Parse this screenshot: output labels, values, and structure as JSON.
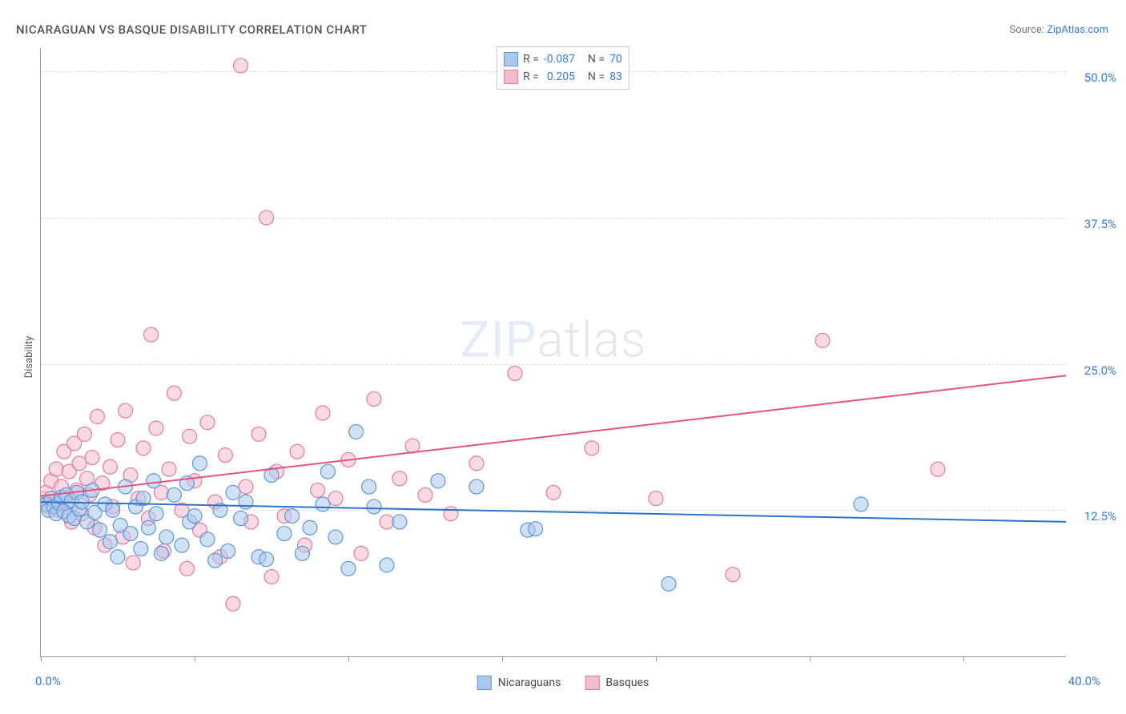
{
  "title": "NICARAGUAN VS BASQUE DISABILITY CORRELATION CHART",
  "source_prefix": "Source: ",
  "source_link": "ZipAtlas.com",
  "y_axis_label": "Disability",
  "watermark_a": "ZIP",
  "watermark_b": "atlas",
  "chart": {
    "type": "scatter",
    "xlim": [
      0,
      40
    ],
    "ylim": [
      0,
      52
    ],
    "y_ticks": [
      12.5,
      25.0,
      37.5,
      50.0
    ],
    "y_tick_labels": [
      "12.5%",
      "25.0%",
      "37.5%",
      "50.0%"
    ],
    "x_tick_positions": [
      0,
      6,
      12,
      18,
      24,
      30,
      36
    ],
    "x_end_labels": [
      "0.0%",
      "40.0%"
    ],
    "grid_color": "#dcdcdc",
    "axis_color": "#999999",
    "background_color": "#ffffff",
    "point_radius": 9,
    "point_opacity": 0.55,
    "trend_line_width": 2,
    "series": [
      {
        "name": "Nicaraguans",
        "fill": "#a9c8ec",
        "stroke": "#5c97d8",
        "line_color": "#2b74c9",
        "R": "-0.087",
        "N": "70",
        "trend": {
          "y_at_x0": 13.2,
          "y_at_x40": 11.5
        },
        "points": [
          [
            0.2,
            13.0
          ],
          [
            0.3,
            12.5
          ],
          [
            0.4,
            13.5
          ],
          [
            0.5,
            12.8
          ],
          [
            0.6,
            12.2
          ],
          [
            0.7,
            13.1
          ],
          [
            0.8,
            13.6
          ],
          [
            0.9,
            12.4
          ],
          [
            1.0,
            13.8
          ],
          [
            1.1,
            12.0
          ],
          [
            1.2,
            13.3
          ],
          [
            1.3,
            11.8
          ],
          [
            1.4,
            14.0
          ],
          [
            1.5,
            12.6
          ],
          [
            1.6,
            13.2
          ],
          [
            1.8,
            11.5
          ],
          [
            2.0,
            14.2
          ],
          [
            2.1,
            12.3
          ],
          [
            2.3,
            10.8
          ],
          [
            2.5,
            13.0
          ],
          [
            2.7,
            9.8
          ],
          [
            2.8,
            12.5
          ],
          [
            3.0,
            8.5
          ],
          [
            3.1,
            11.2
          ],
          [
            3.3,
            14.5
          ],
          [
            3.5,
            10.5
          ],
          [
            3.7,
            12.8
          ],
          [
            3.9,
            9.2
          ],
          [
            4.0,
            13.5
          ],
          [
            4.2,
            11.0
          ],
          [
            4.4,
            15.0
          ],
          [
            4.5,
            12.2
          ],
          [
            4.7,
            8.8
          ],
          [
            4.9,
            10.2
          ],
          [
            5.2,
            13.8
          ],
          [
            5.5,
            9.5
          ],
          [
            5.7,
            14.8
          ],
          [
            5.8,
            11.5
          ],
          [
            6.0,
            12.0
          ],
          [
            6.2,
            16.5
          ],
          [
            6.5,
            10.0
          ],
          [
            6.8,
            8.2
          ],
          [
            7.0,
            12.5
          ],
          [
            7.3,
            9.0
          ],
          [
            7.5,
            14.0
          ],
          [
            7.8,
            11.8
          ],
          [
            8.0,
            13.2
          ],
          [
            8.5,
            8.5
          ],
          [
            8.8,
            8.3
          ],
          [
            9.0,
            15.5
          ],
          [
            9.5,
            10.5
          ],
          [
            9.8,
            12.0
          ],
          [
            10.2,
            8.8
          ],
          [
            10.5,
            11.0
          ],
          [
            11.0,
            13.0
          ],
          [
            11.2,
            15.8
          ],
          [
            11.5,
            10.2
          ],
          [
            12.0,
            7.5
          ],
          [
            12.3,
            19.2
          ],
          [
            12.8,
            14.5
          ],
          [
            13.0,
            12.8
          ],
          [
            13.5,
            7.8
          ],
          [
            14.0,
            11.5
          ],
          [
            15.5,
            15.0
          ],
          [
            17.0,
            14.5
          ],
          [
            19.0,
            10.8
          ],
          [
            19.3,
            10.9
          ],
          [
            24.5,
            6.2
          ],
          [
            32.0,
            13.0
          ]
        ]
      },
      {
        "name": "Basques",
        "fill": "#f4bccb",
        "stroke": "#e67a9b",
        "line_color": "#e5537f",
        "R": "0.205",
        "N": "83",
        "trend": {
          "y_at_x0": 13.7,
          "y_at_x40": 24.0
        },
        "points": [
          [
            0.1,
            13.5
          ],
          [
            0.2,
            14.0
          ],
          [
            0.3,
            12.8
          ],
          [
            0.4,
            15.0
          ],
          [
            0.5,
            13.2
          ],
          [
            0.6,
            16.0
          ],
          [
            0.7,
            12.5
          ],
          [
            0.8,
            14.5
          ],
          [
            0.9,
            17.5
          ],
          [
            1.0,
            13.0
          ],
          [
            1.1,
            15.8
          ],
          [
            1.2,
            11.5
          ],
          [
            1.3,
            18.2
          ],
          [
            1.4,
            14.2
          ],
          [
            1.5,
            16.5
          ],
          [
            1.6,
            12.2
          ],
          [
            1.7,
            19.0
          ],
          [
            1.8,
            15.2
          ],
          [
            1.9,
            13.8
          ],
          [
            2.0,
            17.0
          ],
          [
            2.1,
            11.0
          ],
          [
            2.2,
            20.5
          ],
          [
            2.4,
            14.8
          ],
          [
            2.5,
            9.5
          ],
          [
            2.7,
            16.2
          ],
          [
            2.8,
            12.8
          ],
          [
            3.0,
            18.5
          ],
          [
            3.2,
            10.2
          ],
          [
            3.3,
            21.0
          ],
          [
            3.5,
            15.5
          ],
          [
            3.6,
            8.0
          ],
          [
            3.8,
            13.5
          ],
          [
            4.0,
            17.8
          ],
          [
            4.2,
            11.8
          ],
          [
            4.3,
            27.5
          ],
          [
            4.5,
            19.5
          ],
          [
            4.7,
            14.0
          ],
          [
            4.8,
            9.0
          ],
          [
            5.0,
            16.0
          ],
          [
            5.2,
            22.5
          ],
          [
            5.5,
            12.5
          ],
          [
            5.7,
            7.5
          ],
          [
            5.8,
            18.8
          ],
          [
            6.0,
            15.0
          ],
          [
            6.2,
            10.8
          ],
          [
            6.5,
            20.0
          ],
          [
            6.8,
            13.2
          ],
          [
            7.0,
            8.5
          ],
          [
            7.2,
            17.2
          ],
          [
            7.5,
            4.5
          ],
          [
            7.8,
            50.5
          ],
          [
            8.0,
            14.5
          ],
          [
            8.2,
            11.5
          ],
          [
            8.5,
            19.0
          ],
          [
            8.8,
            37.5
          ],
          [
            9.0,
            6.8
          ],
          [
            9.2,
            15.8
          ],
          [
            9.5,
            12.0
          ],
          [
            10.0,
            17.5
          ],
          [
            10.3,
            9.5
          ],
          [
            10.8,
            14.2
          ],
          [
            11.0,
            20.8
          ],
          [
            11.5,
            13.5
          ],
          [
            12.0,
            16.8
          ],
          [
            12.5,
            8.8
          ],
          [
            13.0,
            22.0
          ],
          [
            13.5,
            11.5
          ],
          [
            14.0,
            15.2
          ],
          [
            14.5,
            18.0
          ],
          [
            15.0,
            13.8
          ],
          [
            16.0,
            12.2
          ],
          [
            17.0,
            16.5
          ],
          [
            18.5,
            24.2
          ],
          [
            20.0,
            14.0
          ],
          [
            21.5,
            17.8
          ],
          [
            24.0,
            13.5
          ],
          [
            27.0,
            7.0
          ],
          [
            30.5,
            27.0
          ],
          [
            35.0,
            16.0
          ]
        ]
      }
    ]
  },
  "legend_bottom": {
    "items": [
      "Nicaraguans",
      "Basques"
    ]
  },
  "legend_top": {
    "r_label": "R =",
    "n_label": "N ="
  }
}
